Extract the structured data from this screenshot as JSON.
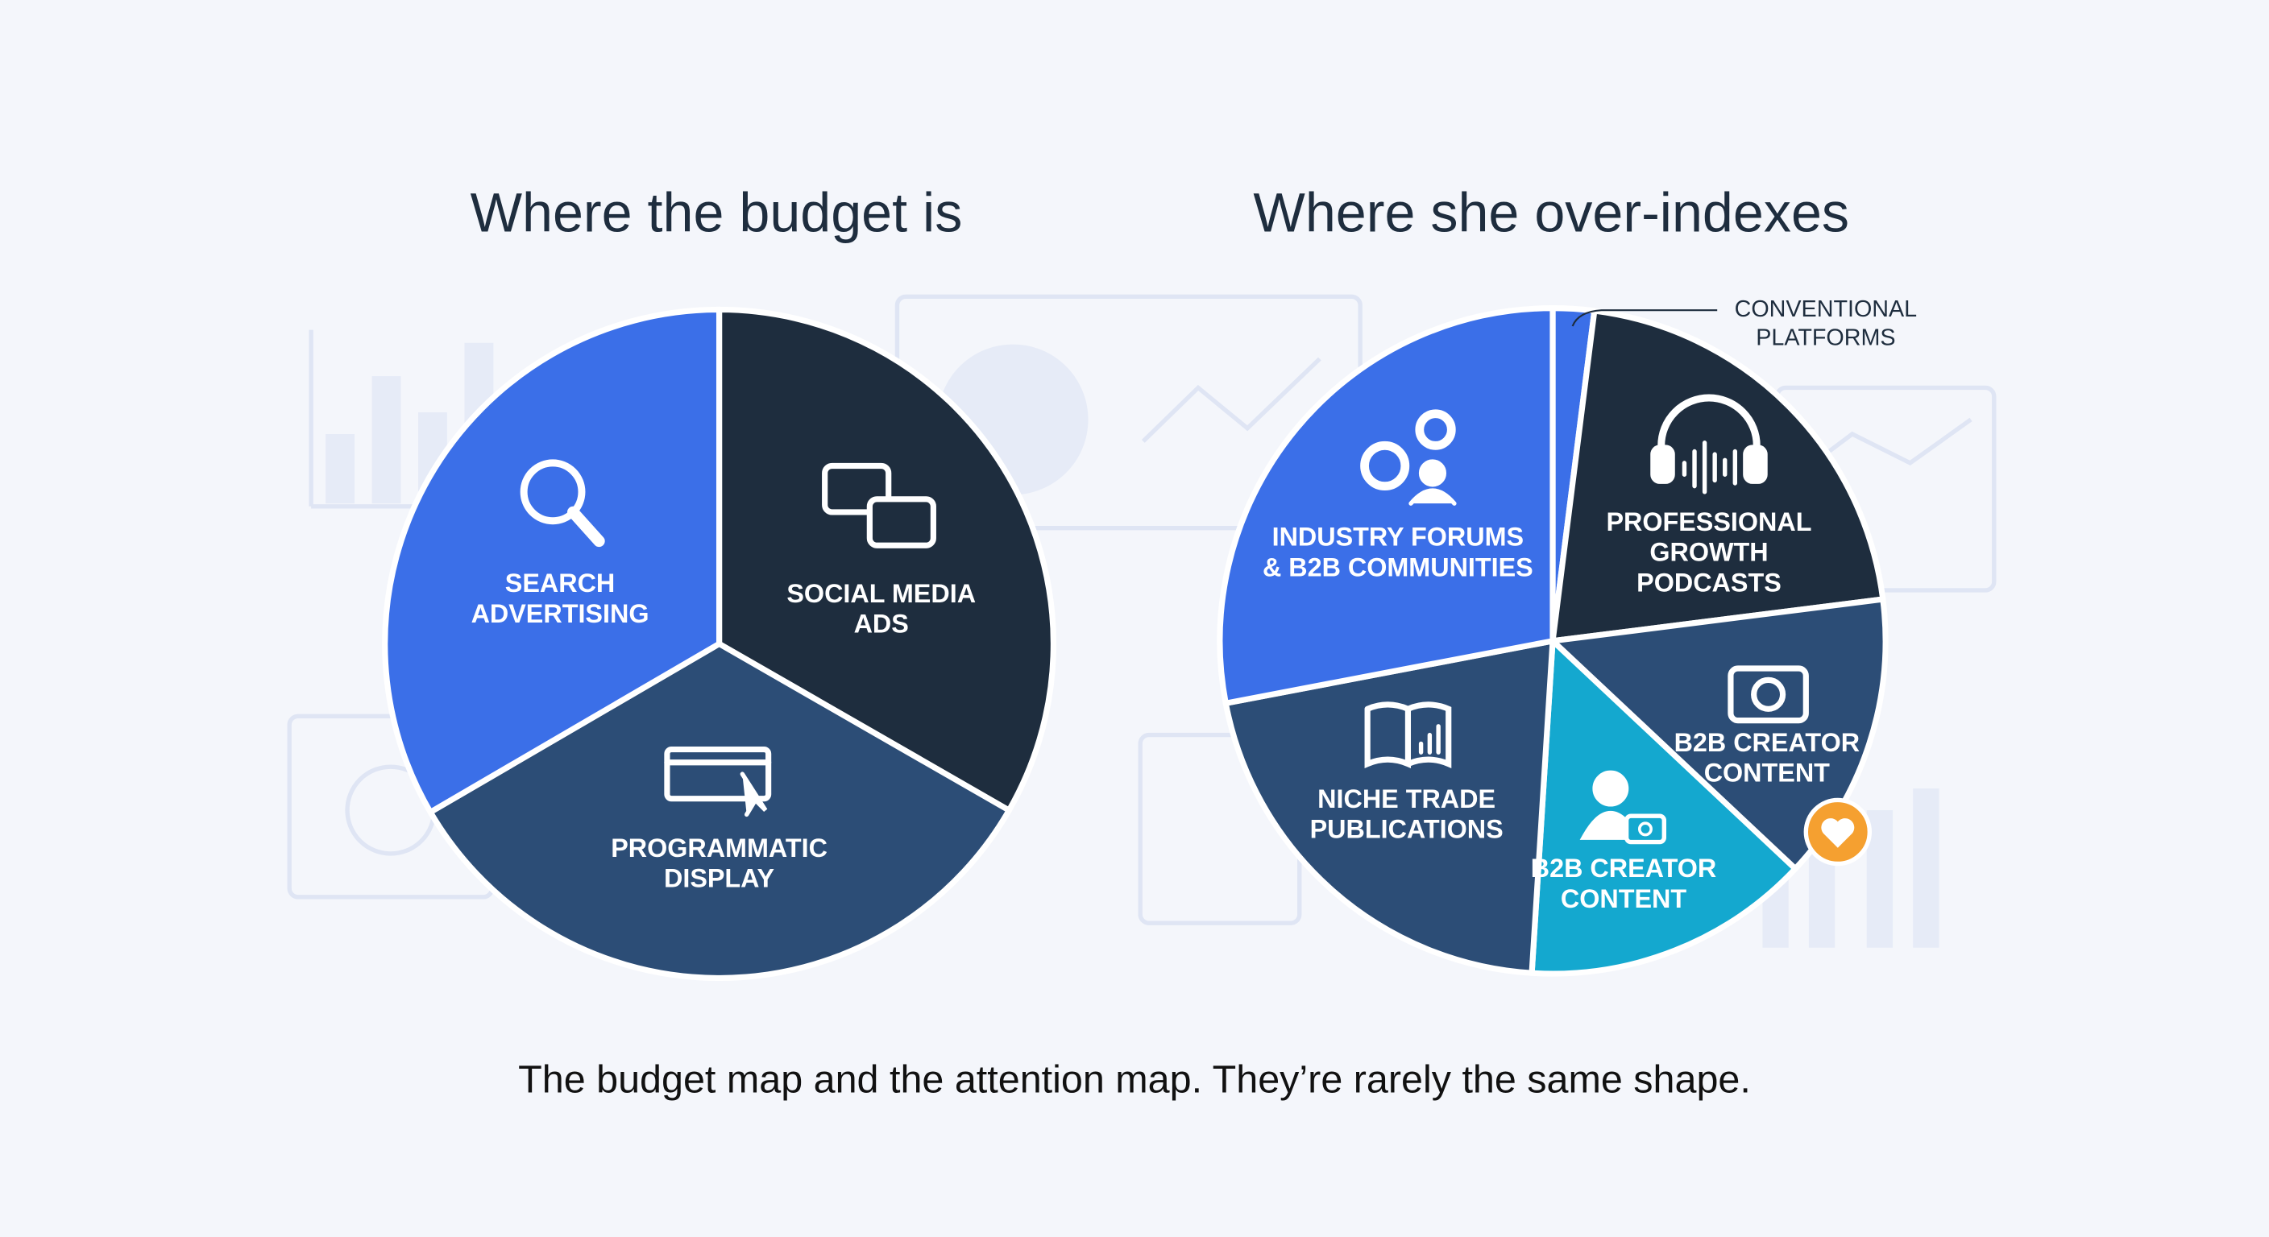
{
  "chart_data": [
    {
      "type": "pie",
      "title": "Where the budget is",
      "categories": [
        "SOCIAL MEDIA\nADS",
        "PROGRAMMATIC\nDISPLAY",
        "SEARCH\nADVERTISING"
      ],
      "values": [
        33.3,
        33.3,
        33.4
      ],
      "colors": [
        "#1e2d3e",
        "#2c4d76",
        "#3b6fe8"
      ]
    },
    {
      "type": "pie",
      "title": "Where she over-indexes",
      "categories": [
        "CONVENTIONAL\nPLATFORMS",
        "PROFESSIONAL\nGROWTH\nPODCASTS",
        "B2B CREATOR\nCONTENT",
        "B2B CREATOR\nCONTENT",
        "NICHE TRADE\nPUBLICATIONS",
        "INDUSTRY FORUMS\n& B2B COMMUNITIES"
      ],
      "values": [
        2,
        21,
        14,
        14,
        21,
        28
      ],
      "colors": [
        "#3b6fe8",
        "#1e2d3e",
        "#2c4d76",
        "#14a8cf",
        "#2c4d76",
        "#3b6fe8"
      ]
    }
  ],
  "caption": "The budget map and the attention map. They’re rarely the same shape."
}
